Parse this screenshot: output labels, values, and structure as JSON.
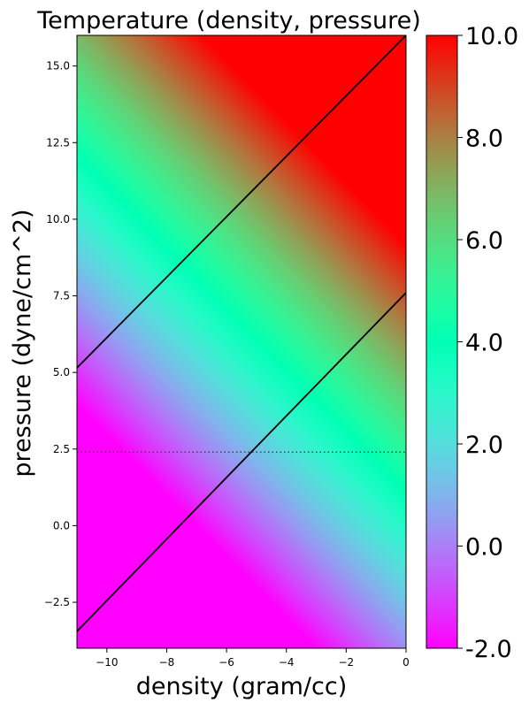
{
  "chart_data": {
    "type": "heatmap",
    "title": "Temperature (density, pressure)",
    "xlabel": "density (gram/cc)",
    "ylabel": "pressure (dyne/cm^2)",
    "xlim": [
      -11,
      0
    ],
    "ylim": [
      -4,
      16
    ],
    "x_ticks": [
      -10,
      -8,
      -6,
      -4,
      -2,
      0
    ],
    "x_tick_labels": [
      "−10",
      "−8",
      "−6",
      "−4",
      "−2",
      "0"
    ],
    "y_ticks": [
      -2.5,
      0.0,
      2.5,
      5.0,
      7.5,
      10.0,
      12.5,
      15.0
    ],
    "y_tick_labels": [
      "−2.5",
      "0.0",
      "2.5",
      "5.0",
      "7.5",
      "10.0",
      "12.5",
      "15.0"
    ],
    "colormap": "rainbow",
    "color_range": [
      -2.0,
      10.0
    ],
    "colorbar_ticks": [
      -2.0,
      0.0,
      2.0,
      4.0,
      6.0,
      8.0,
      10.0
    ],
    "colorbar_tick_labels": [
      "-2.0",
      "0.0",
      "2.0",
      "4.0",
      "6.0",
      "8.0",
      "10.0"
    ],
    "field": {
      "temperature_at_origin": 3.2,
      "d_temperature_d_density": 0.74,
      "d_temperature_d_pressure": 0.74
    },
    "lines": [
      {
        "x": [
          -11,
          0
        ],
        "y": [
          5.15,
          16.0
        ],
        "style": "solid",
        "color": "#000000"
      },
      {
        "x": [
          -11,
          0
        ],
        "y": [
          -3.45,
          7.6
        ],
        "style": "solid",
        "color": "#000000"
      }
    ],
    "hlines": [
      {
        "y": 2.4,
        "style": "dotted",
        "color": "#444444"
      }
    ]
  }
}
